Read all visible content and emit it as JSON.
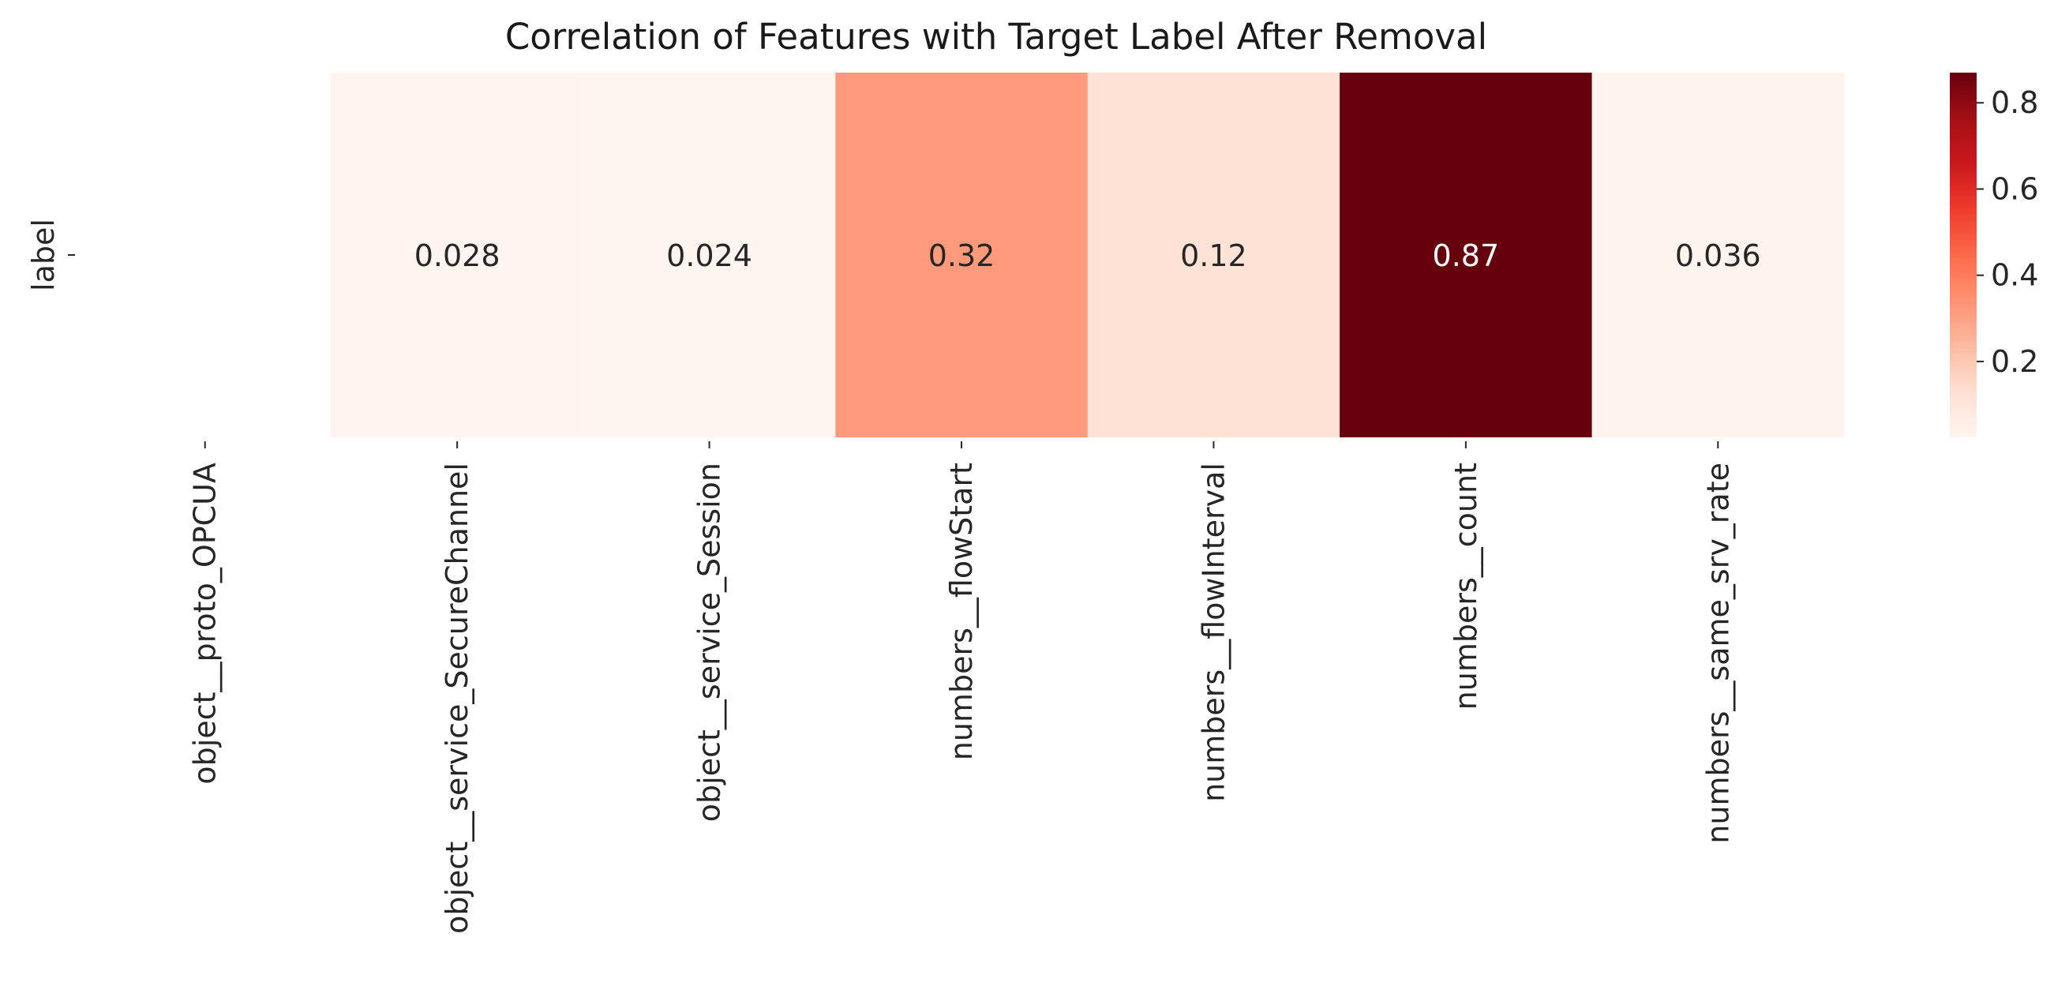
{
  "chart_data": {
    "type": "heatmap",
    "title": "Correlation of Features with Target Label After Removal",
    "y_categories": [
      "label"
    ],
    "x_categories": [
      "object__proto_OPCUA",
      "object__service_SecureChannel",
      "object__service_Session",
      "numbers__flowStart",
      "numbers__flowInterval",
      "numbers__count",
      "numbers__same_srv_rate"
    ],
    "values": [
      [
        null,
        0.028,
        0.024,
        0.32,
        0.12,
        0.87,
        0.036
      ]
    ],
    "annotations": [
      "",
      "0.028",
      "0.024",
      "0.32",
      "0.12",
      "0.87",
      "0.036"
    ],
    "colormap": "Reds",
    "colorbar": {
      "vmin": 0.024,
      "vmax": 0.87,
      "ticks": [
        0.2,
        0.4,
        0.6,
        0.8
      ],
      "tick_labels": [
        "0.2",
        "0.4",
        "0.6",
        "0.8"
      ]
    },
    "missing_cells_blank": true,
    "grid": false,
    "legend": "colorbar-right"
  }
}
